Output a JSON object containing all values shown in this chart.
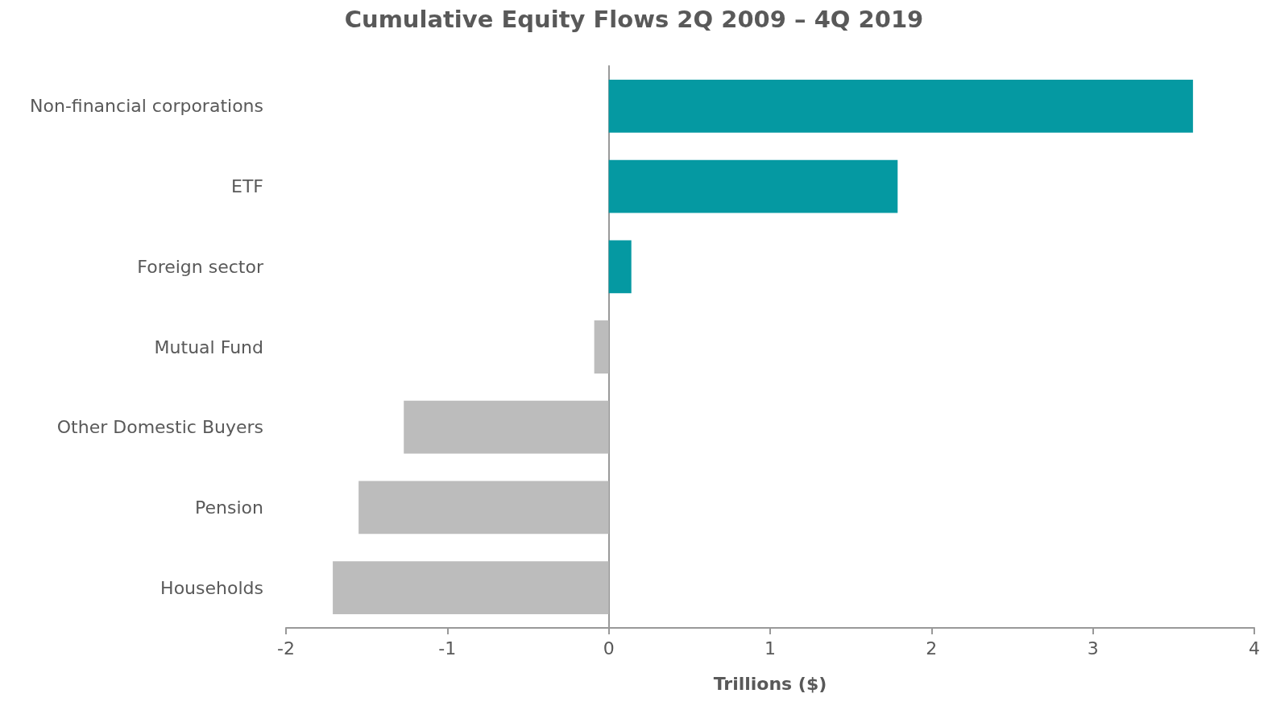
{
  "chart_data": {
    "type": "bar",
    "orientation": "horizontal",
    "title": "Cumulative Equity Flows 2Q 2009 – 4Q 2019",
    "xlabel": "Trillions ($)",
    "categories": [
      "Non-financial corporations",
      "ETF",
      "Foreign sector",
      "Mutual Fund",
      "Other Domestic Buyers",
      "Pension",
      "Households"
    ],
    "values": [
      3.62,
      1.79,
      0.14,
      -0.09,
      -1.27,
      -1.55,
      -1.71
    ],
    "colors": [
      "#0599a2",
      "#0599a2",
      "#0599a2",
      "#bcbcbc",
      "#bcbcbc",
      "#bcbcbc",
      "#bcbcbc"
    ],
    "xlim": [
      -2,
      4
    ],
    "xticks": [
      -2,
      -1,
      0,
      1,
      2,
      3,
      4
    ]
  }
}
